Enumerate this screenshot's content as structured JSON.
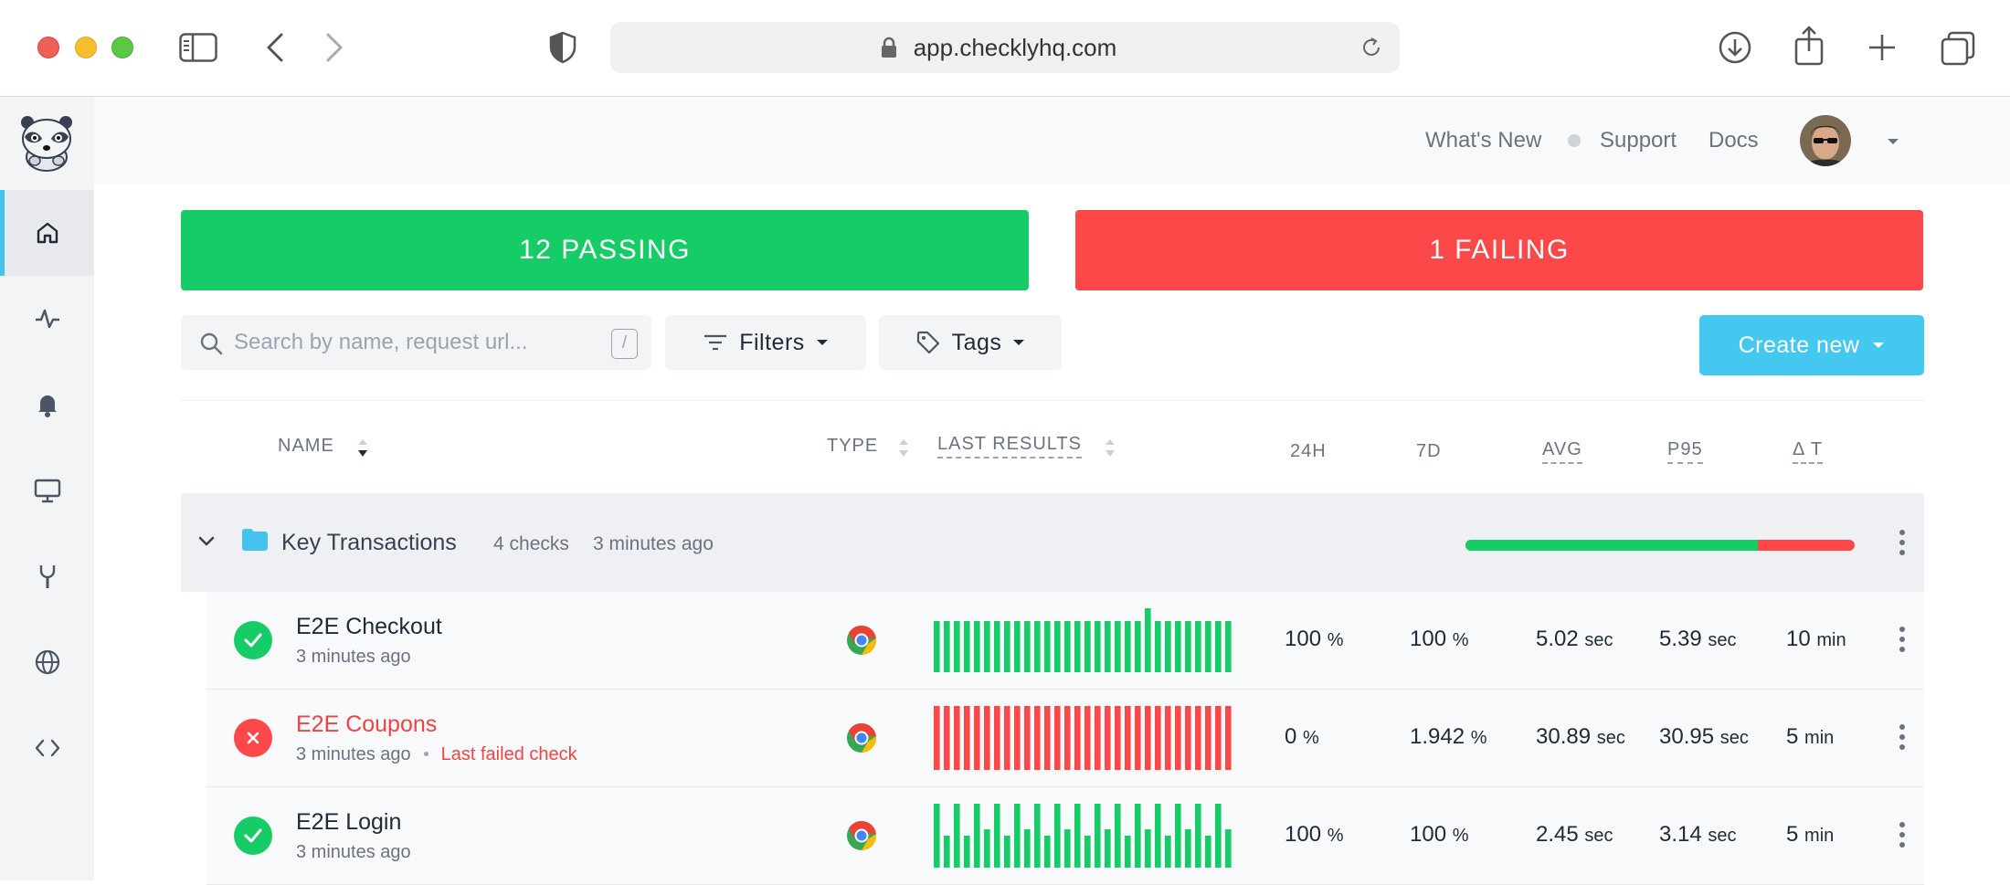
{
  "browser": {
    "url": "app.checklyhq.com"
  },
  "header": {
    "links": [
      {
        "label": "What's New"
      },
      {
        "label": "Support"
      },
      {
        "label": "Docs"
      }
    ]
  },
  "summary": {
    "passing": "12 PASSING",
    "failing": "1 FAILING"
  },
  "toolbar": {
    "search_placeholder": "Search by name, request url...",
    "search_shortcut": "/",
    "filters_label": "Filters",
    "tags_label": "Tags",
    "create_label": "Create new"
  },
  "columns": {
    "name": "NAME",
    "type": "TYPE",
    "last_results": "LAST RESULTS",
    "h24": "24H",
    "d7": "7D",
    "avg": "AVG",
    "p95": "P95",
    "delta_t": "Δ T"
  },
  "group": {
    "name": "Key Transactions",
    "count": "4 checks",
    "updated": "3 minutes ago",
    "pass_ratio": 0.75
  },
  "checks": [
    {
      "name": "E2E Checkout",
      "time": "3 minutes ago",
      "status": "passing",
      "failed_note": "",
      "h24": "100",
      "h24_unit": "%",
      "d7": "100",
      "d7_unit": "%",
      "avg": "5.02",
      "avg_unit": "sec",
      "p95": "5.39",
      "p95_unit": "sec",
      "delta": "10",
      "delta_unit": "min",
      "results": [
        0.8,
        0.8,
        0.8,
        0.8,
        0.8,
        0.8,
        0.8,
        0.8,
        0.8,
        0.8,
        0.8,
        0.8,
        0.8,
        0.8,
        0.8,
        0.8,
        0.8,
        0.8,
        0.8,
        0.8,
        0.8,
        1.0,
        0.8,
        0.8,
        0.8,
        0.8,
        0.8,
        0.8,
        0.8,
        0.8
      ]
    },
    {
      "name": "E2E Coupons",
      "time": "3 minutes ago",
      "status": "failing",
      "failed_note": "Last failed check",
      "h24": "0",
      "h24_unit": "%",
      "d7": "1.942",
      "d7_unit": "%",
      "avg": "30.89",
      "avg_unit": "sec",
      "p95": "30.95",
      "p95_unit": "sec",
      "delta": "5",
      "delta_unit": "min",
      "results": [
        1,
        1,
        1,
        1,
        1,
        1,
        1,
        1,
        1,
        1,
        1,
        1,
        1,
        1,
        1,
        1,
        1,
        1,
        1,
        1,
        1,
        1,
        1,
        1,
        1,
        1,
        1,
        1,
        1,
        1
      ]
    },
    {
      "name": "E2E Login",
      "time": "3 minutes ago",
      "status": "passing",
      "failed_note": "",
      "h24": "100",
      "h24_unit": "%",
      "d7": "100",
      "d7_unit": "%",
      "avg": "2.45",
      "avg_unit": "sec",
      "p95": "3.14",
      "p95_unit": "sec",
      "delta": "5",
      "delta_unit": "min",
      "results": [
        1,
        0.5,
        1,
        0.5,
        1,
        0.6,
        1,
        0.5,
        1,
        0.6,
        1,
        0.5,
        1,
        0.6,
        1,
        0.5,
        1,
        0.6,
        1,
        0.5,
        1,
        0.6,
        1,
        0.5,
        1,
        0.6,
        1,
        0.5,
        1,
        0.6
      ]
    }
  ],
  "colors": {
    "pass": "#16cc66",
    "fail": "#fd4849",
    "accent": "#45c8f0"
  },
  "sidebar_icons": [
    "home-icon",
    "activity-icon",
    "bell-icon",
    "monitor-icon",
    "tools-icon",
    "globe-icon",
    "code-icon"
  ]
}
